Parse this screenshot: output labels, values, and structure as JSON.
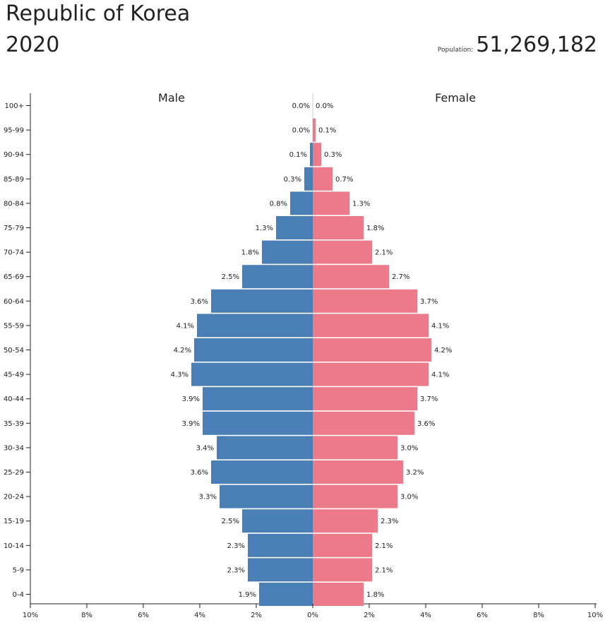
{
  "header": {
    "title": "Republic of Korea",
    "year": "2020",
    "population_label": "Population:",
    "population_value": "51,269,182"
  },
  "chart_data": {
    "type": "bar",
    "orientation": "horizontal-pyramid",
    "categories": [
      "100+",
      "95-99",
      "90-94",
      "85-89",
      "80-84",
      "75-79",
      "70-74",
      "65-69",
      "60-64",
      "55-59",
      "50-54",
      "45-49",
      "40-44",
      "35-39",
      "30-34",
      "25-29",
      "20-24",
      "15-19",
      "10-14",
      "5-9",
      "0-4"
    ],
    "series": [
      {
        "name": "Male",
        "color": "#4a7fb5",
        "values": [
          0.0,
          0.0,
          0.1,
          0.3,
          0.8,
          1.3,
          1.8,
          2.5,
          3.6,
          4.1,
          4.2,
          4.3,
          3.9,
          3.9,
          3.4,
          3.6,
          3.3,
          2.5,
          2.3,
          2.3,
          1.9
        ],
        "labels": [
          "0.0%",
          "0.0%",
          "0.1%",
          "0.3%",
          "0.8%",
          "1.3%",
          "1.8%",
          "2.5%",
          "3.6%",
          "4.1%",
          "4.2%",
          "4.3%",
          "3.9%",
          "3.9%",
          "3.4%",
          "3.6%",
          "3.3%",
          "2.5%",
          "2.3%",
          "2.3%",
          "1.9%"
        ]
      },
      {
        "name": "Female",
        "color": "#ed7a8a",
        "values": [
          0.0,
          0.1,
          0.3,
          0.7,
          1.3,
          1.8,
          2.1,
          2.7,
          3.7,
          4.1,
          4.2,
          4.1,
          3.7,
          3.6,
          3.0,
          3.2,
          3.0,
          2.3,
          2.1,
          2.1,
          1.8
        ],
        "labels": [
          "0.0%",
          "0.1%",
          "0.3%",
          "0.7%",
          "1.3%",
          "1.8%",
          "2.1%",
          "2.7%",
          "3.7%",
          "4.1%",
          "4.2%",
          "4.1%",
          "3.7%",
          "3.6%",
          "3.0%",
          "3.2%",
          "3.0%",
          "2.3%",
          "2.1%",
          "2.1%",
          "1.8%"
        ]
      }
    ],
    "x_ticks": [
      "10%",
      "8%",
      "6%",
      "4%",
      "2%",
      "0%",
      "2%",
      "4%",
      "6%",
      "8%",
      "10%"
    ],
    "xlim": [
      -10,
      10
    ],
    "grid": false
  }
}
